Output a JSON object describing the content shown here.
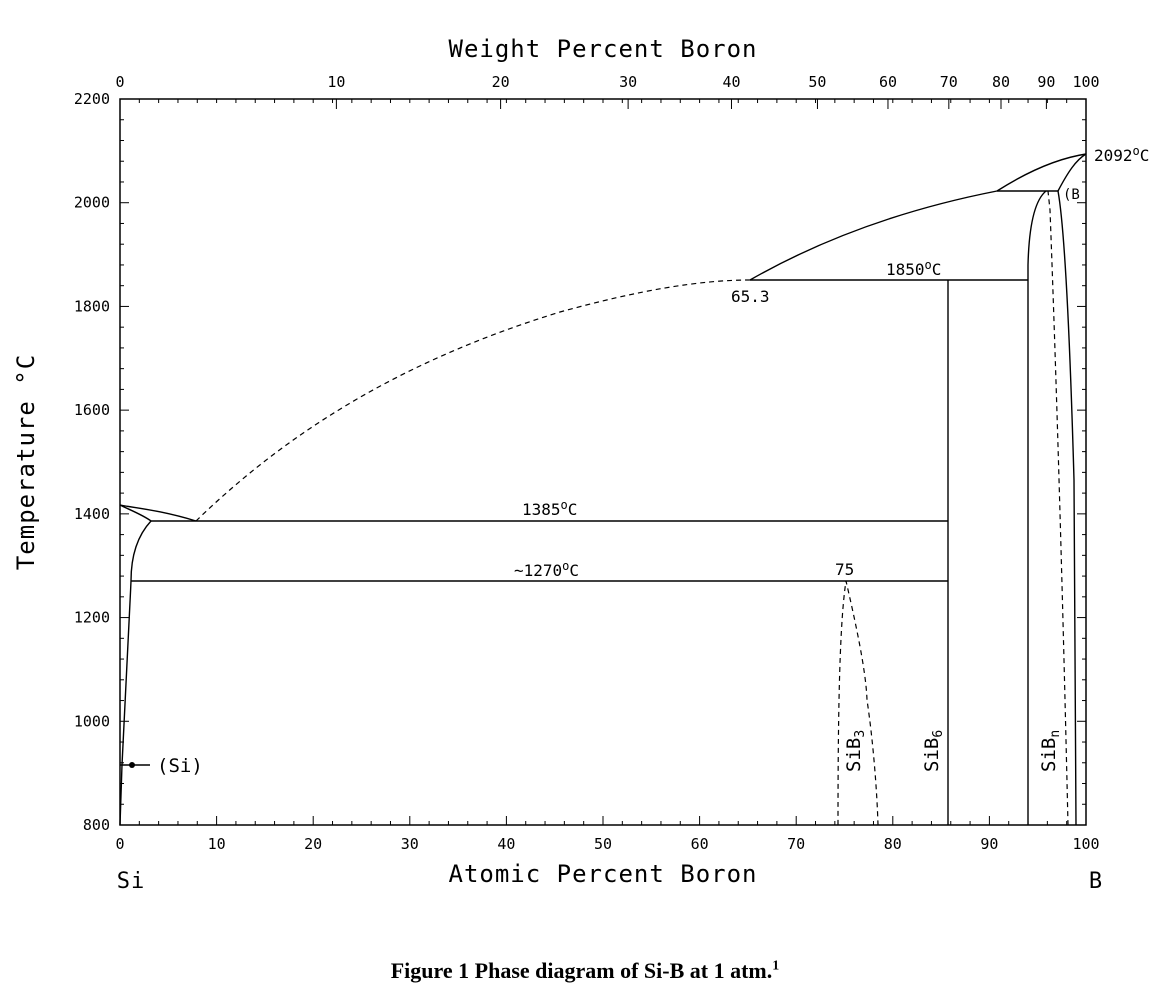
{
  "figure": {
    "caption": "Figure 1 Phase diagram of Si-B at 1 atm.",
    "caption_note": "1"
  },
  "axes": {
    "top_title": "Weight Percent Boron",
    "bottom_title": "Atomic Percent Boron",
    "left_title": "Temperature °C",
    "left_end_label": "Si",
    "right_end_label": "B",
    "bottom_ticks": [
      "0",
      "10",
      "20",
      "30",
      "40",
      "50",
      "60",
      "70",
      "80",
      "90",
      "100"
    ],
    "top_ticks": [
      {
        "wt": "0",
        "at": 0
      },
      {
        "wt": "10",
        "at": 22.4
      },
      {
        "wt": "20",
        "at": 39.4
      },
      {
        "wt": "30",
        "at": 52.6
      },
      {
        "wt": "40",
        "at": 63.3
      },
      {
        "wt": "50",
        "at": 72.2
      },
      {
        "wt": "60",
        "at": 79.5
      },
      {
        "wt": "70",
        "at": 85.8
      },
      {
        "wt": "80",
        "at": 91.2
      },
      {
        "wt": "90",
        "at": 95.9
      },
      {
        "wt": "100",
        "at": 100
      }
    ],
    "left_ticks": [
      "800",
      "1000",
      "1200",
      "1400",
      "1600",
      "1800",
      "2000",
      "2200"
    ],
    "x_range": [
      0,
      100
    ],
    "y_range": [
      800,
      2200
    ]
  },
  "annotations": {
    "t_1385": "1385",
    "t_1270_prefix": "~1270",
    "t_1850": "1850",
    "t_2092": "2092",
    "deg_c": "C",
    "comp_653": "65.3",
    "comp_75": "75",
    "si_phase": "(Si)",
    "b_phase": "(B",
    "sib3": "SiB",
    "sib3_sub": "3",
    "sib6": "SiB",
    "sib6_sub": "6",
    "sibn": "SiB",
    "sibn_sub": "n"
  },
  "phase_boundaries": {
    "invariant_1385": {
      "x": [
        3.2,
        85.7
      ],
      "T": 1385
    },
    "invariant_1270": {
      "x": [
        1.0,
        85.7
      ],
      "T": 1270
    },
    "invariant_1850": {
      "x": [
        65.3,
        93.8
      ],
      "T": 1850
    },
    "invariant_2020": {
      "x": [
        90.8,
        97.2
      ],
      "T": 2020
    },
    "sib6_line": {
      "x": 85.7,
      "T": [
        800,
        1850
      ]
    },
    "sibn_left_line": {
      "x": 93.8,
      "T": [
        800,
        1850
      ]
    },
    "melting_points": {
      "Si": 1414,
      "B": 2092
    }
  }
}
